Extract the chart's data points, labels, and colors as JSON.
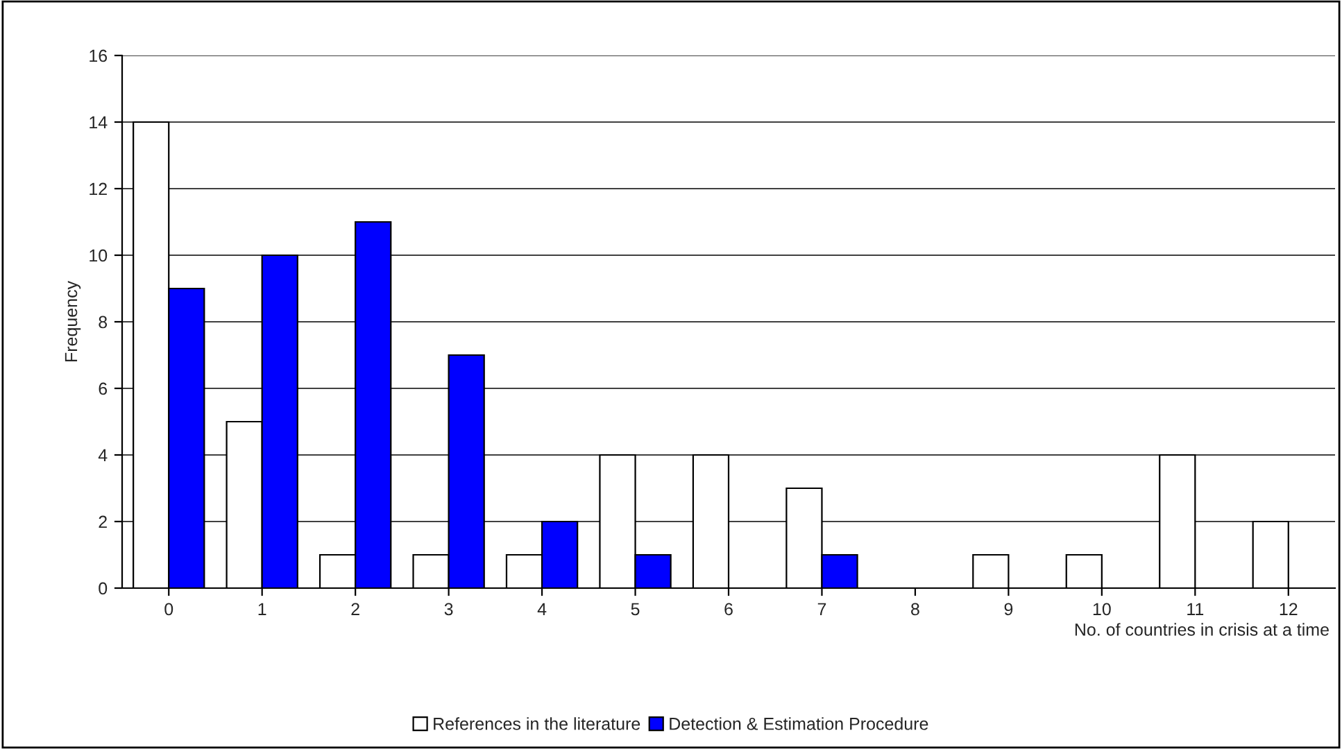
{
  "chart_data": {
    "type": "bar",
    "xlabel": "No. of countries in crisis at a time",
    "ylabel": "Frequency",
    "categories": [
      "0",
      "1",
      "2",
      "3",
      "4",
      "5",
      "6",
      "7",
      "8",
      "9",
      "10",
      "11",
      "12"
    ],
    "series": [
      {
        "name": "References in the literature",
        "color": "#ffffff",
        "values": [
          14,
          5,
          1,
          1,
          1,
          4,
          4,
          3,
          0,
          1,
          1,
          4,
          2
        ]
      },
      {
        "name": "Detection & Estimation Procedure",
        "color": "#0000ff",
        "values": [
          9,
          10,
          11,
          7,
          2,
          1,
          0,
          1,
          0,
          0,
          0,
          0,
          0
        ]
      }
    ],
    "ylim": [
      0,
      16
    ],
    "yticks": [
      0,
      2,
      4,
      6,
      8,
      10,
      12,
      14,
      16
    ],
    "grid": "y",
    "legend": "bottom"
  }
}
